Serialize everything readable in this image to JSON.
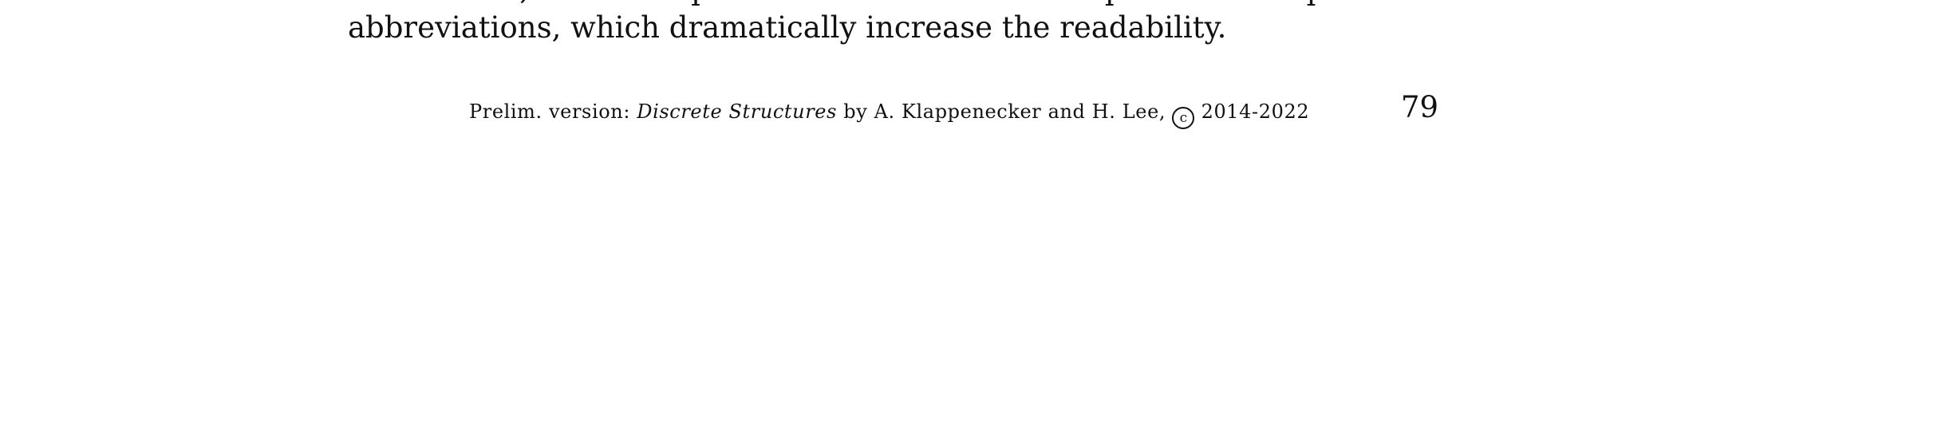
{
  "body": {
    "cut_off_line": "and related, these compact formulas are easier to parse with explanations",
    "last_line": "abbreviations, which dramatically increase the readability."
  },
  "footer": {
    "prefix": "Prelim. version: ",
    "book_title": "Discrete Structures",
    "authors": " by A. Klappenecker and H. Lee, ",
    "copyright_symbol": "c",
    "years": " 2014-2022"
  },
  "page_number": "79"
}
